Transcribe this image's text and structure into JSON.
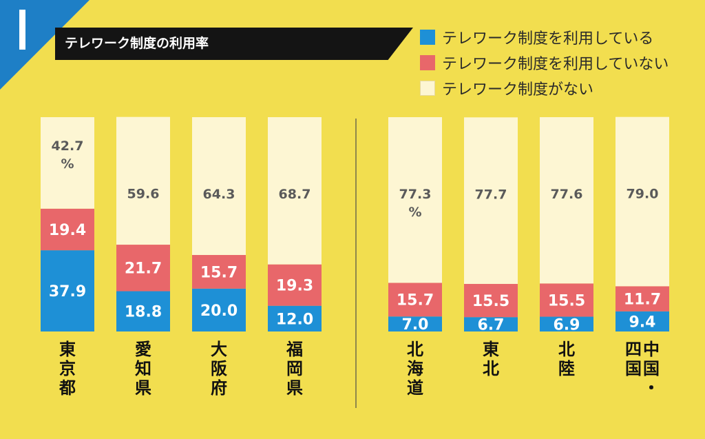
{
  "colors": {
    "background": "#f2de4f",
    "accent_blue": "#1e7fc6",
    "banner": "#141414",
    "using": "#1e90d6",
    "not_using": "#e8676a",
    "no_system": "#fdf6d3",
    "label_dark": "#5a5a5a",
    "label_light": "#ffffff"
  },
  "header": {
    "section_number": "1",
    "title": "テレワーク制度の利用率"
  },
  "legend": [
    {
      "label": "テレワーク制度を利用している",
      "color": "#1e90d6"
    },
    {
      "label": "テレワーク制度を利用していない",
      "color": "#e8676a"
    },
    {
      "label": "テレワーク制度がない",
      "color": "#fdf6d3"
    }
  ],
  "chart_data": {
    "type": "bar",
    "stacked": true,
    "unit": "%",
    "categories": [
      "東京都",
      "愛知県",
      "大阪府",
      "福岡県",
      "北海道",
      "東北",
      "北陸",
      "中国・四国"
    ],
    "groups": [
      [
        "東京都",
        "愛知県",
        "大阪府",
        "福岡県"
      ],
      [
        "北海道",
        "東北",
        "北陸",
        "中国・四国"
      ]
    ],
    "series": [
      {
        "name": "テレワーク制度を利用している",
        "values": [
          37.9,
          18.8,
          20.0,
          12.0,
          7.0,
          6.7,
          6.9,
          9.4
        ]
      },
      {
        "name": "テレワーク制度を利用していない",
        "values": [
          19.4,
          21.7,
          15.7,
          19.3,
          15.7,
          15.5,
          15.5,
          11.7
        ]
      },
      {
        "name": "テレワーク制度がない",
        "values": [
          42.7,
          59.6,
          64.3,
          68.7,
          77.3,
          77.7,
          77.6,
          79.0
        ]
      }
    ],
    "display_labels": {
      "テレワーク制度を利用している": [
        "37.9",
        "18.8",
        "20.0",
        "12.0",
        "7.0",
        "6.7",
        "6.9",
        "9.4"
      ],
      "テレワーク制度を利用していない": [
        "19.4",
        "21.7",
        "15.7",
        "19.3",
        "15.7",
        "15.5",
        "15.5",
        "11.7"
      ],
      "テレワーク制度がない": [
        "42.7",
        "59.6",
        "64.3",
        "68.7",
        "77.3",
        "77.7",
        "77.6",
        "79.0"
      ]
    },
    "unit_marked_categories": [
      "東京都",
      "北海道"
    ],
    "ylim": [
      0,
      100
    ],
    "grid": false,
    "legend_position": "top-right"
  }
}
